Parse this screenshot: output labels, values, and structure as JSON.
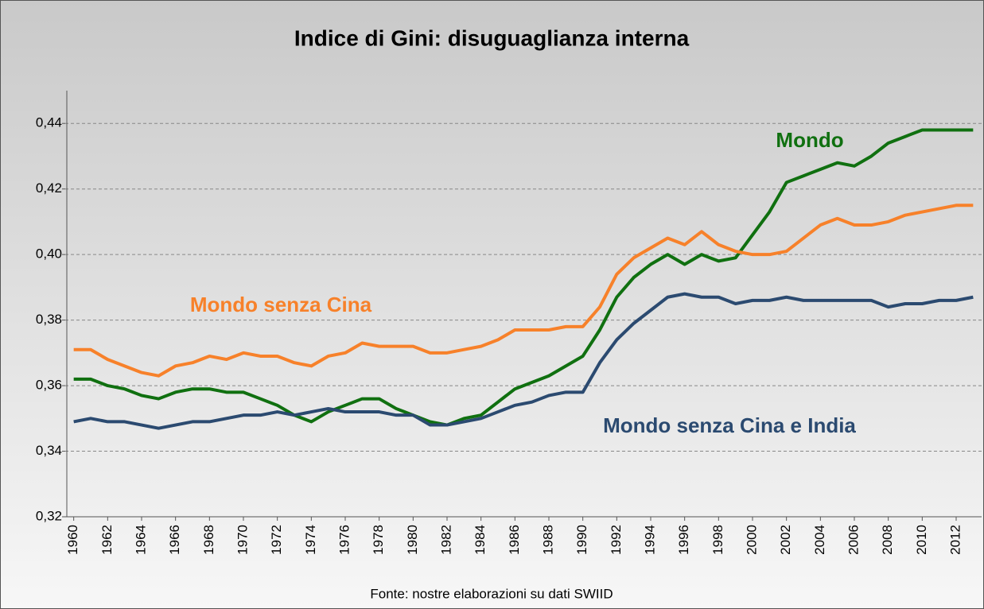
{
  "chart_data": {
    "type": "line",
    "title": "Indice di Gini: disuguaglianza interna",
    "source": "Fonte: nostre elaborazioni su dati SWIID",
    "x": [
      1960,
      1961,
      1962,
      1963,
      1964,
      1965,
      1966,
      1967,
      1968,
      1969,
      1970,
      1971,
      1972,
      1973,
      1974,
      1975,
      1976,
      1977,
      1978,
      1979,
      1980,
      1981,
      1982,
      1983,
      1984,
      1985,
      1986,
      1987,
      1988,
      1989,
      1990,
      1991,
      1992,
      1993,
      1994,
      1995,
      1996,
      1997,
      1998,
      1999,
      2000,
      2001,
      2002,
      2003,
      2004,
      2005,
      2006,
      2007,
      2008,
      2009,
      2010,
      2011,
      2012,
      2013
    ],
    "xlim": [
      1959.5,
      2013.5
    ],
    "xticks": [
      1960,
      1962,
      1964,
      1966,
      1968,
      1970,
      1972,
      1974,
      1976,
      1978,
      1980,
      1982,
      1984,
      1986,
      1988,
      1990,
      1992,
      1994,
      1996,
      1998,
      2000,
      2002,
      2004,
      2006,
      2008,
      2010,
      2012
    ],
    "ylim": [
      0.32,
      0.45
    ],
    "yticks": [
      {
        "value": 0.32,
        "label": "0,32"
      },
      {
        "value": 0.34,
        "label": "0,34"
      },
      {
        "value": 0.36,
        "label": "0,36"
      },
      {
        "value": 0.38,
        "label": "0,38"
      },
      {
        "value": 0.4,
        "label": "0,40"
      },
      {
        "value": 0.42,
        "label": "0,42"
      },
      {
        "value": 0.44,
        "label": "0,44"
      }
    ],
    "grid": true,
    "series": [
      {
        "name": "Mondo",
        "color": "#107010",
        "values": [
          0.362,
          0.362,
          0.36,
          0.359,
          0.357,
          0.356,
          0.358,
          0.359,
          0.359,
          0.358,
          0.358,
          0.356,
          0.354,
          0.351,
          0.349,
          0.352,
          0.354,
          0.356,
          0.356,
          0.353,
          0.351,
          0.349,
          0.348,
          0.35,
          0.351,
          0.355,
          0.359,
          0.361,
          0.363,
          0.366,
          0.369,
          0.377,
          0.387,
          0.393,
          0.397,
          0.4,
          0.397,
          0.4,
          0.398,
          0.399,
          0.406,
          0.413,
          0.422,
          0.424,
          0.426,
          0.428,
          0.427,
          0.43,
          0.434,
          0.436,
          0.438,
          0.438,
          0.438,
          0.438
        ]
      },
      {
        "name": "Mondo senza Cina",
        "color": "#f7812a",
        "values": [
          0.371,
          0.371,
          0.368,
          0.366,
          0.364,
          0.363,
          0.366,
          0.367,
          0.369,
          0.368,
          0.37,
          0.369,
          0.369,
          0.367,
          0.366,
          0.369,
          0.37,
          0.373,
          0.372,
          0.372,
          0.372,
          0.37,
          0.37,
          0.371,
          0.372,
          0.374,
          0.377,
          0.377,
          0.377,
          0.378,
          0.378,
          0.384,
          0.394,
          0.399,
          0.402,
          0.405,
          0.403,
          0.407,
          0.403,
          0.401,
          0.4,
          0.4,
          0.401,
          0.405,
          0.409,
          0.411,
          0.409,
          0.409,
          0.41,
          0.412,
          0.413,
          0.414,
          0.415,
          0.415
        ]
      },
      {
        "name": "Mondo senza Cina e India",
        "color": "#2b4a70",
        "values": [
          0.349,
          0.35,
          0.349,
          0.349,
          0.348,
          0.347,
          0.348,
          0.349,
          0.349,
          0.35,
          0.351,
          0.351,
          0.352,
          0.351,
          0.352,
          0.353,
          0.352,
          0.352,
          0.352,
          0.351,
          0.351,
          0.348,
          0.348,
          0.349,
          0.35,
          0.352,
          0.354,
          0.355,
          0.357,
          0.358,
          0.358,
          0.367,
          0.374,
          0.379,
          0.383,
          0.387,
          0.388,
          0.387,
          0.387,
          0.385,
          0.386,
          0.386,
          0.387,
          0.386,
          0.386,
          0.386,
          0.386,
          0.386,
          0.384,
          0.385,
          0.385,
          0.386,
          0.386,
          0.387
        ]
      }
    ]
  }
}
